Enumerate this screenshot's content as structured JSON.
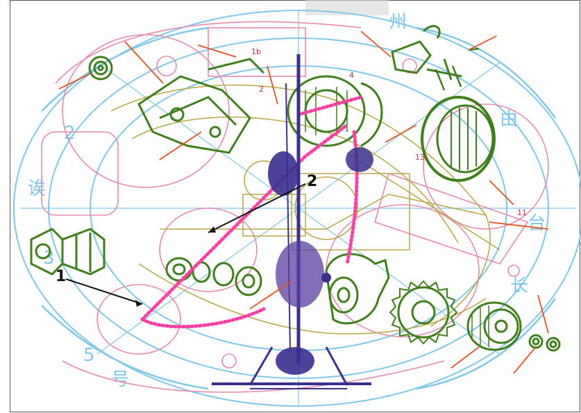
{
  "figure": {
    "colors": {
      "background_blue": "#7ec8ea",
      "background_pink": "#e889ad",
      "parts_green": "#3f7f1a",
      "parts_olive": "#b8a640",
      "stand_purple": "#3a2f8f",
      "bead_magenta": "#ff3fa6",
      "leader_orange": "#e8501f",
      "callout_black": "#111111"
    },
    "callouts": [
      {
        "label": "1"
      },
      {
        "label": "2"
      }
    ],
    "small_labels": [
      {
        "text": "1b"
      },
      {
        "text": "2"
      },
      {
        "text": "11"
      },
      {
        "text": "13"
      },
      {
        "text": "4"
      }
    ],
    "background_glyphs": [
      "诶",
      "由",
      "台",
      "长",
      "州",
      "号",
      "3",
      "2",
      "5"
    ]
  }
}
